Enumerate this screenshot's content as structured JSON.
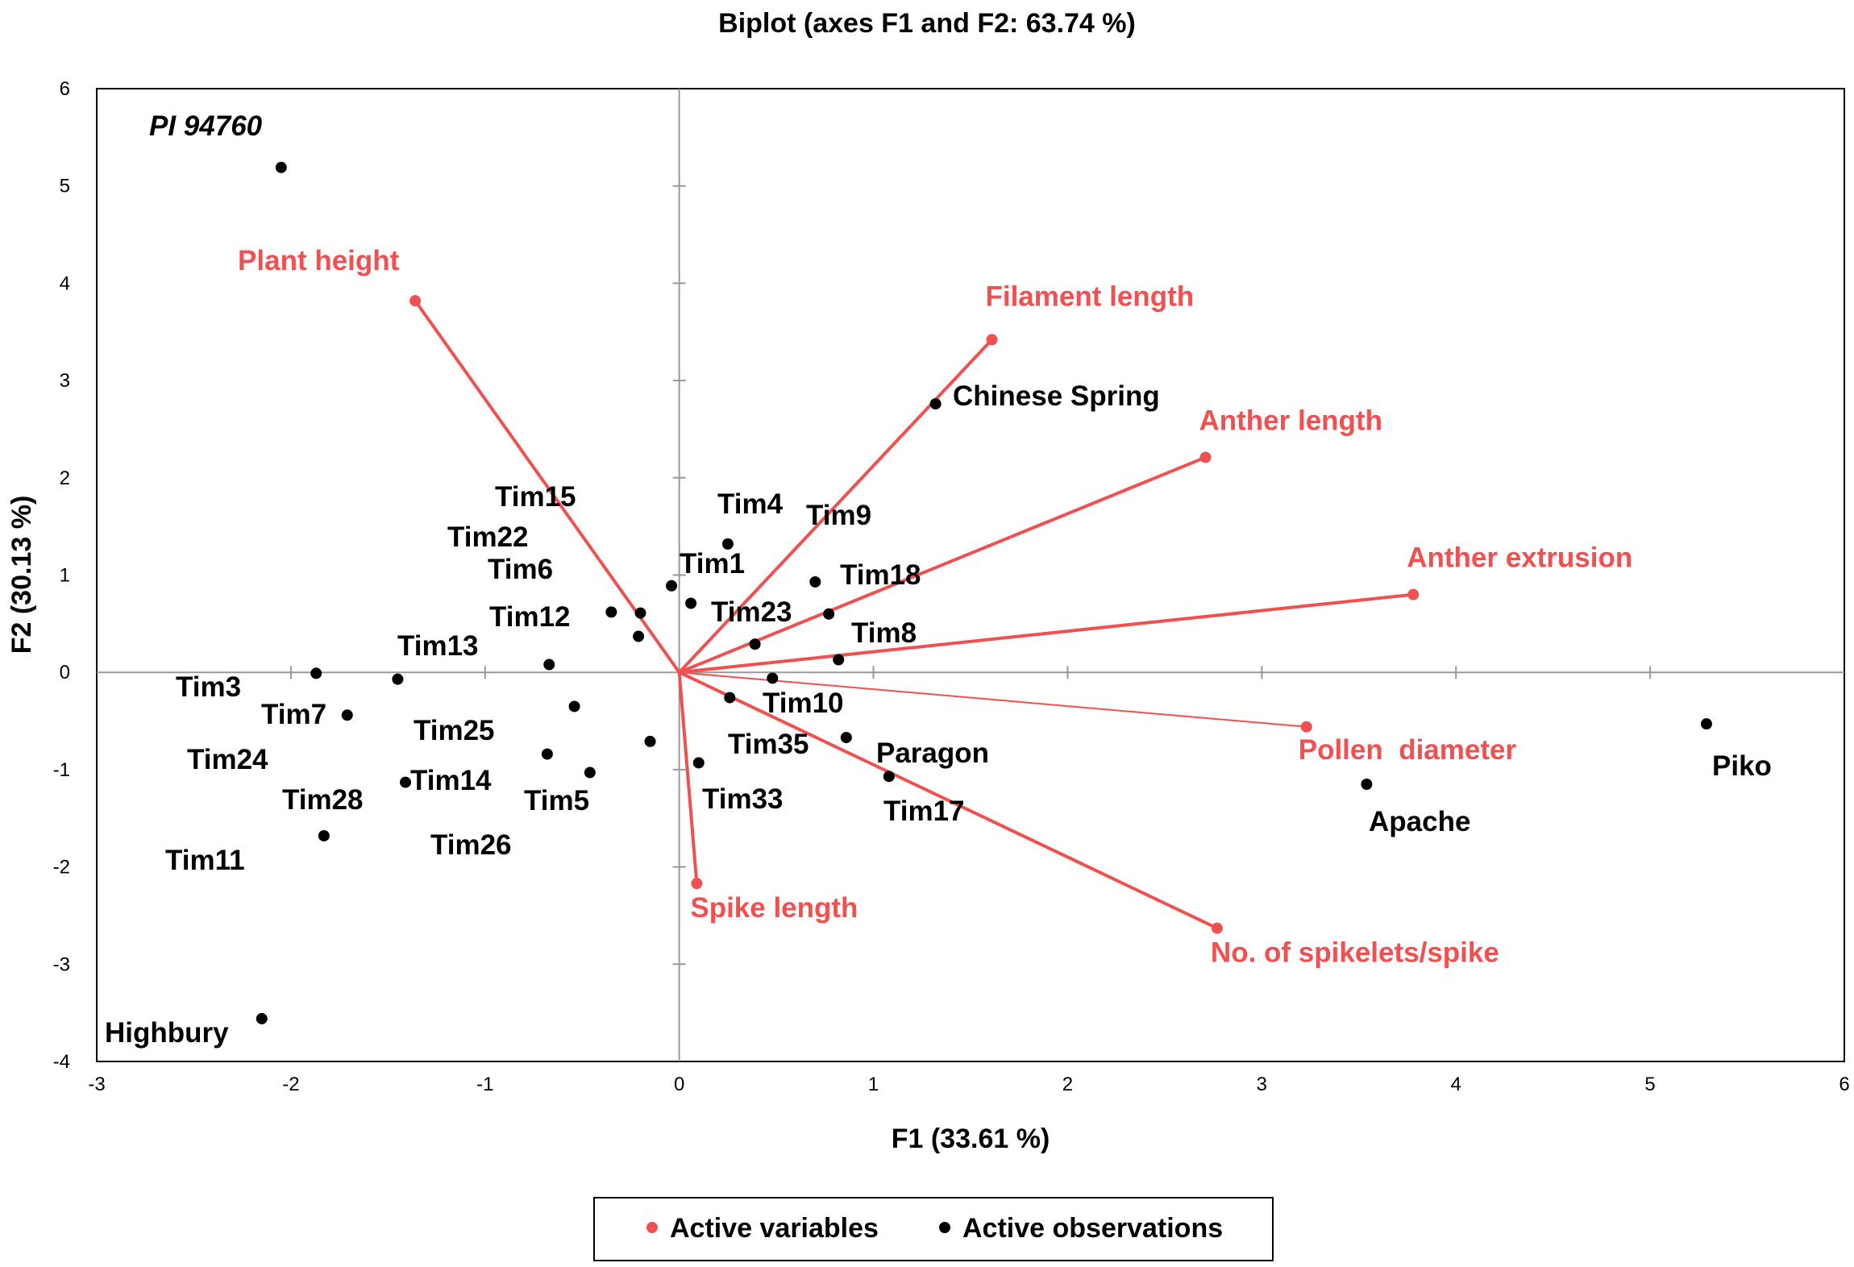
{
  "chart_data": {
    "type": "scatter",
    "title": "Biplot (axes F1 and F2: 63.74 %)",
    "xlabel": "F1 (33.61 %)",
    "ylabel": "F2 (30.13 %)",
    "xlim": [
      -3,
      6
    ],
    "ylim": [
      -4,
      6
    ],
    "xticks": [
      "-3",
      "-2",
      "-1",
      "0",
      "1",
      "2",
      "3",
      "4",
      "5",
      "6"
    ],
    "yticks": [
      "-4",
      "-3",
      "-2",
      "-1",
      "0",
      "1",
      "2",
      "3",
      "4",
      "5",
      "6"
    ],
    "colors": {
      "variables": "#f05050",
      "observations": "#000000",
      "frame": "#000000",
      "zero_lines": "#999999"
    },
    "legend": {
      "placement": "bottom-center",
      "items": [
        {
          "label": "Active variables",
          "color": "#f05050"
        },
        {
          "label": "Active observations",
          "color": "#000000"
        }
      ]
    },
    "variables": [
      {
        "name": "Plant height",
        "x": -1.36,
        "y": 3.82
      },
      {
        "name": "Filament length",
        "x": 1.61,
        "y": 3.42
      },
      {
        "name": "Anther length",
        "x": 2.71,
        "y": 2.21
      },
      {
        "name": "Anther extrusion",
        "x": 3.78,
        "y": 0.8
      },
      {
        "name": "Pollen  diameter",
        "x": 3.23,
        "y": -0.56
      },
      {
        "name": "No. of spikelets/spike",
        "x": 2.77,
        "y": -2.63
      },
      {
        "name": "Spike length",
        "x": 0.09,
        "y": -2.17
      }
    ],
    "observations": [
      {
        "name": "PI 94760",
        "x": -2.05,
        "y": 5.19,
        "italic": true
      },
      {
        "name": "Chinese Spring",
        "x": 1.32,
        "y": 2.76
      },
      {
        "name": "Tim15",
        "x": -0.35,
        "y": 0.62
      },
      {
        "name": "Tim22",
        "x": -0.2,
        "y": 0.61
      },
      {
        "name": "Tim6",
        "x": -0.21,
        "y": 0.37
      },
      {
        "name": "Tim4",
        "x": 0.25,
        "y": 1.32
      },
      {
        "name": "Tim9",
        "x": 0.7,
        "y": 0.93
      },
      {
        "name": "Tim1",
        "x": -0.04,
        "y": 0.89
      },
      {
        "name": "Tim18",
        "x": 0.77,
        "y": 0.6
      },
      {
        "name": "Tim23",
        "x": 0.06,
        "y": 0.71
      },
      {
        "name": "Tim12",
        "x": -0.67,
        "y": 0.08
      },
      {
        "name": "Tim8",
        "x": 0.82,
        "y": 0.13
      },
      {
        "name": "Tim13",
        "x": -1.45,
        "y": -0.07
      },
      {
        "name": "Tim3",
        "x": -1.87,
        "y": -0.01
      },
      {
        "name": "Tim7",
        "x": -1.71,
        "y": -0.44
      },
      {
        "name": "Tim10",
        "x": 0.48,
        "y": -0.06
      },
      {
        "name": "Tim25",
        "x": -0.54,
        "y": -0.35
      },
      {
        "name": "Tim35",
        "x": 0.26,
        "y": -0.26
      },
      {
        "name": "Paragon",
        "x": 0.86,
        "y": -0.67
      },
      {
        "name": "Tim24",
        "x": -0.68,
        "y": -0.84
      },
      {
        "name": "Tim14",
        "x": -1.41,
        "y": -1.13
      },
      {
        "name": "Tim5",
        "x": -0.46,
        "y": -1.03
      },
      {
        "name": "Tim33",
        "x": 0.1,
        "y": -0.93
      },
      {
        "name": "Tim17",
        "x": 1.08,
        "y": -1.07
      },
      {
        "name": "Tim28",
        "x": -0.15,
        "y": -0.71
      },
      {
        "name": "Tim26",
        "x": 0.39,
        "y": 0.29
      },
      {
        "name": "Tim11",
        "x": -1.83,
        "y": -1.68
      },
      {
        "name": "Apache",
        "x": 3.54,
        "y": -1.15
      },
      {
        "name": "Piko",
        "x": 5.29,
        "y": -0.53
      },
      {
        "name": "Highbury",
        "x": -2.15,
        "y": -3.56
      }
    ]
  }
}
